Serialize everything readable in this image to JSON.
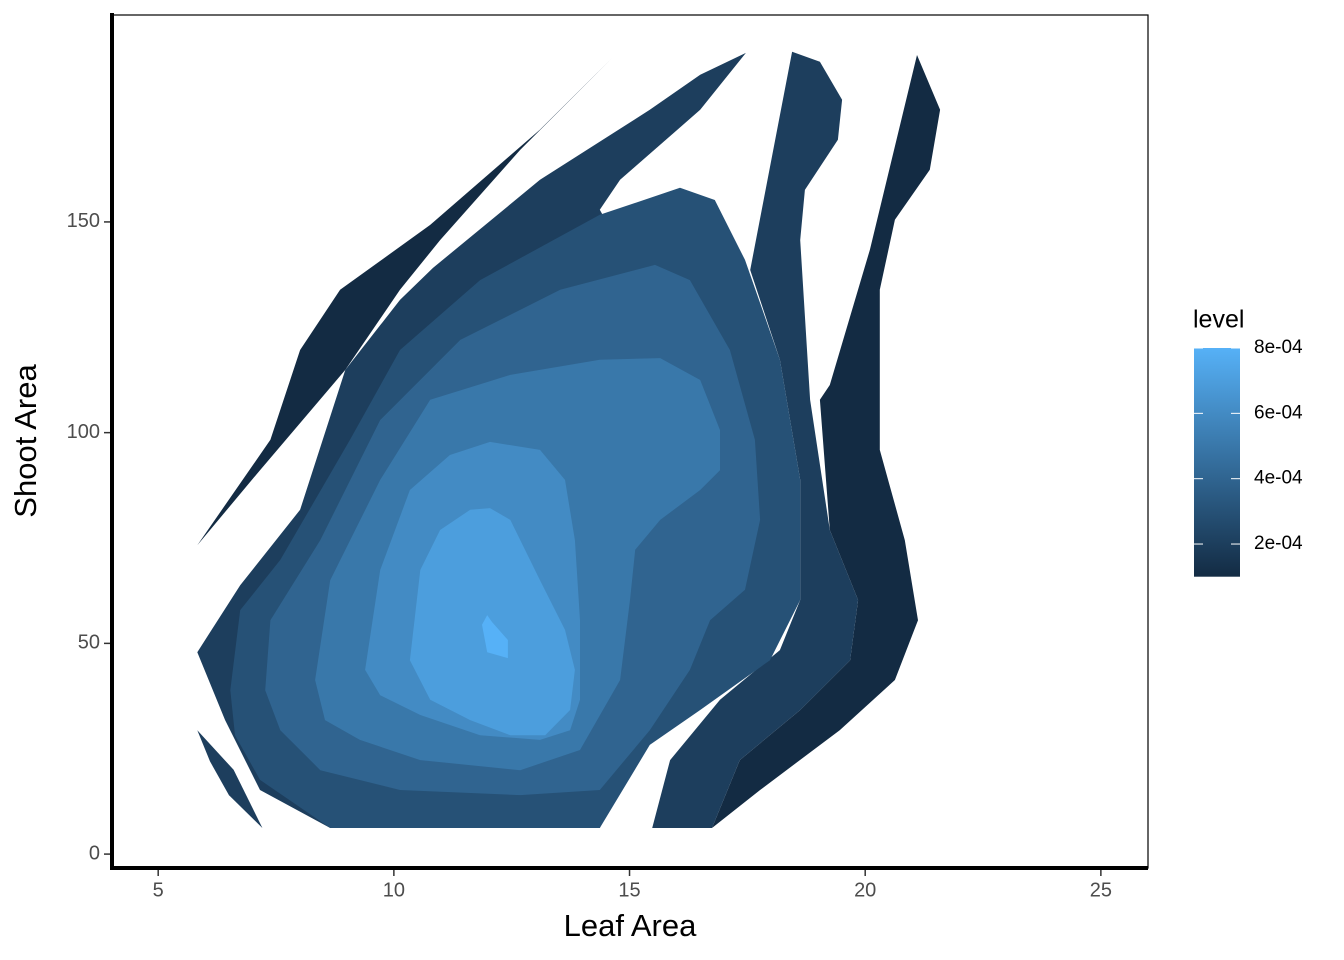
{
  "chart_data": {
    "type": "filled_density_contour",
    "x_label": "Leaf Area",
    "y_label": "Shoot Area",
    "xlim": [
      4.02,
      26.0
    ],
    "xticks": [
      5,
      10,
      15,
      20,
      25
    ],
    "ylim": [
      -3.3,
      199.1
    ],
    "yticks": [
      0,
      50,
      100,
      150
    ],
    "legend": {
      "title": "level",
      "lim": [
        0.0001,
        0.0008
      ],
      "low_color": "#132B43",
      "high_color": "#56B1F7",
      "ticks": [
        {
          "value": 0.0002,
          "label": "2e-04"
        },
        {
          "value": 0.0004,
          "label": "4e-04"
        },
        {
          "value": 0.0006,
          "label": "6e-04"
        },
        {
          "value": 0.0008,
          "label": "8e-04"
        }
      ]
    },
    "bands": [
      {
        "level": 0.0001,
        "polygons": [
          {
            "x": [
              5.83,
              7.38,
              8.01,
              8.86,
              10.77,
              13.1,
              14.63,
              12.68,
              10.98,
              10.13,
              8.97,
              7.16
            ],
            "y": [
              73.3,
              98.3,
              119.6,
              133.9,
              149.3,
              171.9,
              188.9,
              167.1,
              145.7,
              133.9,
              114.9,
              91.1
            ]
          },
          {
            "x": [
              21.1,
              21.59,
              21.37,
              20.63,
              20.31,
              20.31,
              20.84,
              21.12,
              20.63,
              19.46,
              17.77,
              16.75,
              17.34,
              18.62,
              19.68,
              19.85,
              19.25,
              19.04,
              19.25,
              20.1
            ],
            "y": [
              189.6,
              176.6,
              162.4,
              150.5,
              133.9,
              95.9,
              74.5,
              55.5,
              41.3,
              29.4,
              15.2,
              6.2,
              22.3,
              34.2,
              46.0,
              60.3,
              76.9,
              107.8,
              111.3,
              143.4
            ]
          }
        ]
      },
      {
        "level": 0.0002,
        "polygons": [
          {
            "x": [
              5.83,
              6.6,
              7.21,
              6.5,
              6.1
            ],
            "y": [
              29.4,
              20.0,
              6.2,
              14.0,
              22.0
            ]
          },
          {
            "x": [
              5.83,
              6.74,
              8.01,
              8.97,
              10.13,
              10.83,
              13.1,
              15.43,
              16.5,
              17.47,
              16.5,
              14.8,
              14.37,
              15.43,
              15.43,
              14.37,
              8.65,
              7.16,
              6.42
            ],
            "y": [
              47.9,
              63.8,
              81.7,
              114.9,
              131.5,
              139.1,
              160.0,
              176.6,
              184.9,
              190.1,
              176.6,
              160.0,
              152.9,
              131.5,
              36.6,
              6.2,
              6.2,
              15.2,
              31.8
            ]
          },
          {
            "x": [
              15.48,
              15.86,
              16.92,
              18.19,
              18.62,
              18.62,
              18.19,
              17.56,
              18.45,
              19.04,
              19.51,
              19.42,
              18.72,
              18.62,
              18.83,
              19.25,
              19.85,
              19.68,
              18.62,
              17.34,
              16.75
            ],
            "y": [
              6.2,
              22.3,
              36.6,
              48.4,
              60.3,
              88.8,
              117.3,
              138.6,
              190.4,
              188.0,
              179.0,
              169.5,
              157.6,
              145.7,
              107.8,
              76.9,
              60.3,
              46.0,
              34.2,
              22.3,
              6.2
            ]
          }
        ]
      },
      {
        "level": 0.0003,
        "polygons": [
          {
            "x": [
              6.53,
              6.74,
              7.59,
              9.07,
              10.13,
              11.83,
              14.37,
              16.07,
              16.81,
              17.45,
              18.19,
              18.62,
              18.62,
              17.98,
              16.5,
              15.43,
              14.37,
              8.65,
              7.16,
              6.63
            ],
            "y": [
              38.9,
              57.9,
              69.8,
              98.3,
              119.6,
              136.2,
              151.7,
              158.1,
              155.2,
              141.0,
              117.3,
              88.8,
              60.3,
              46.0,
              34.2,
              25.9,
              6.2,
              6.2,
              17.6,
              28.2
            ]
          }
        ]
      },
      {
        "level": 0.0004,
        "polygons": [
          {
            "x": [
              7.27,
              7.38,
              8.44,
              9.71,
              11.41,
              13.53,
              15.54,
              16.28,
              17.13,
              17.66,
              17.77,
              17.45,
              16.71,
              16.28,
              15.43,
              14.37,
              12.68,
              10.13,
              8.44,
              7.59
            ],
            "y": [
              38.9,
              55.5,
              74.5,
              103.0,
              122.0,
              133.9,
              139.8,
              136.2,
              119.6,
              98.3,
              79.3,
              62.7,
              55.5,
              43.7,
              29.4,
              15.2,
              14.0,
              15.2,
              19.9,
              29.4
            ]
          }
        ]
      },
      {
        "level": 0.0005,
        "polygons": [
          {
            "x": [
              8.33,
              8.65,
              9.71,
              10.77,
              12.47,
              14.37,
              15.65,
              16.5,
              16.92,
              16.92,
              16.5,
              15.65,
              15.12,
              15.01,
              14.8,
              13.95,
              12.68,
              10.56,
              9.28,
              8.54
            ],
            "y": [
              41.3,
              65.0,
              88.8,
              107.8,
              113.7,
              117.3,
              117.7,
              112.5,
              100.6,
              91.1,
              86.4,
              79.3,
              72.2,
              60.3,
              41.3,
              24.7,
              19.9,
              22.3,
              27.1,
              31.8
            ]
          }
        ]
      },
      {
        "level": 0.0006,
        "polygons": [
          {
            "x": [
              9.39,
              9.71,
              10.34,
              11.19,
              12.04,
              13.1,
              13.63,
              13.84,
              13.95,
              13.95,
              13.74,
              13.1,
              11.83,
              10.56,
              9.71
            ],
            "y": [
              43.7,
              67.4,
              86.4,
              94.7,
              97.8,
              95.9,
              88.8,
              74.5,
              55.5,
              36.6,
              29.4,
              27.1,
              28.2,
              33.0,
              37.7
            ]
          }
        ]
      },
      {
        "level": 0.0007,
        "polygons": [
          {
            "x": [
              10.34,
              10.56,
              10.98,
              11.62,
              12.04,
              12.47,
              13.1,
              13.63,
              13.84,
              13.74,
              13.21,
              12.47,
              11.62,
              10.77
            ],
            "y": [
              46.0,
              67.4,
              76.9,
              81.7,
              82.1,
              79.3,
              65.0,
              53.2,
              43.7,
              34.2,
              28.2,
              28.2,
              31.8,
              36.6
            ]
          }
        ]
      },
      {
        "level": 0.0008,
        "polygons": [
          {
            "x": [
              11.87,
              11.98,
              12.08,
              12.42,
              12.42,
              11.98
            ],
            "y": [
              54.4,
              56.7,
              55.1,
              50.8,
              46.5,
              47.9
            ]
          }
        ]
      }
    ]
  }
}
